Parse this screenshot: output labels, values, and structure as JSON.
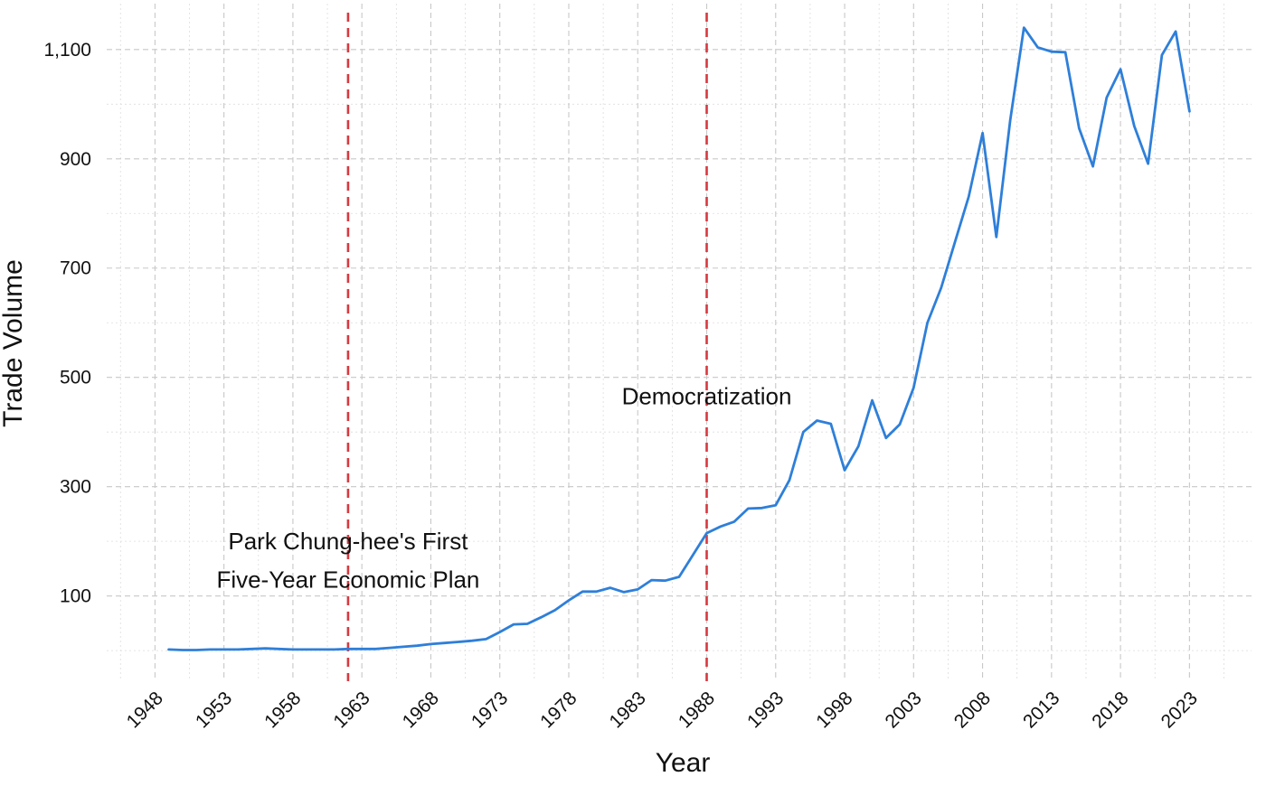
{
  "chart_data": {
    "type": "line",
    "title": "",
    "xlabel": "Year",
    "ylabel": "Trade Volume",
    "xlim": [
      1944.5,
      1927.5
    ],
    "x_ticks": [
      1948,
      1953,
      1958,
      1963,
      1968,
      1973,
      1978,
      1983,
      1988,
      1993,
      1998,
      2003,
      2008,
      2013,
      2018,
      2023
    ],
    "y_ticks": [
      100,
      300,
      500,
      700,
      900,
      1100
    ],
    "y_tick_labels": [
      "100",
      "300",
      "500",
      "700",
      "900",
      "1,100"
    ],
    "ylim": [
      -56,
      1184
    ],
    "grid": true,
    "line_color": "#2E7FD9",
    "series": [
      {
        "x": [
          1949,
          1950,
          1951,
          1952,
          1953,
          1954,
          1955,
          1956,
          1957,
          1958,
          1959,
          1960,
          1961,
          1962,
          1963,
          1964,
          1965,
          1966,
          1967,
          1968,
          1969,
          1970,
          1971,
          1972,
          1973,
          1974,
          1975,
          1976,
          1977,
          1978,
          1979,
          1980,
          1981,
          1982,
          1983,
          1984,
          1985,
          1986,
          1987,
          1988,
          1989,
          1990,
          1991,
          1992,
          1993,
          1994,
          1995,
          1996,
          1997,
          1998,
          1999,
          2000,
          2001,
          2002,
          2003,
          2004,
          2005,
          2006,
          2007,
          2008,
          2009,
          2010,
          2011,
          2012,
          2013,
          2014,
          2015,
          2016,
          2017,
          2018,
          2019,
          2020,
          2021,
          2022,
          2023
        ],
        "values": [
          2,
          1,
          1,
          2,
          2,
          2,
          3,
          4,
          3,
          2,
          2,
          2,
          2,
          3,
          3,
          3,
          5,
          7,
          9,
          12,
          14,
          16,
          18,
          21,
          34,
          48,
          49,
          61,
          74,
          92,
          108,
          108,
          115,
          107,
          112,
          129,
          128,
          135,
          175,
          215,
          227,
          236,
          260,
          261,
          266,
          312,
          400,
          421,
          415,
          330,
          374,
          458,
          389,
          414,
          481,
          600,
          664,
          748,
          831,
          947,
          757,
          970,
          1140,
          1104,
          1096,
          1095,
          956,
          886,
          1012,
          1064,
          960,
          891,
          1090,
          1133,
          987
        ]
      }
    ],
    "vlines": [
      {
        "x": 1962,
        "color": "#D7393F",
        "label_lines": [
          "Park Chung-hee's First",
          "Five-Year Economic Plan"
        ],
        "label_y": [
          200,
          130
        ]
      },
      {
        "x": 1988,
        "color": "#D7393F",
        "label_lines": [
          "Democratization"
        ],
        "label_y": [
          466
        ]
      }
    ]
  }
}
